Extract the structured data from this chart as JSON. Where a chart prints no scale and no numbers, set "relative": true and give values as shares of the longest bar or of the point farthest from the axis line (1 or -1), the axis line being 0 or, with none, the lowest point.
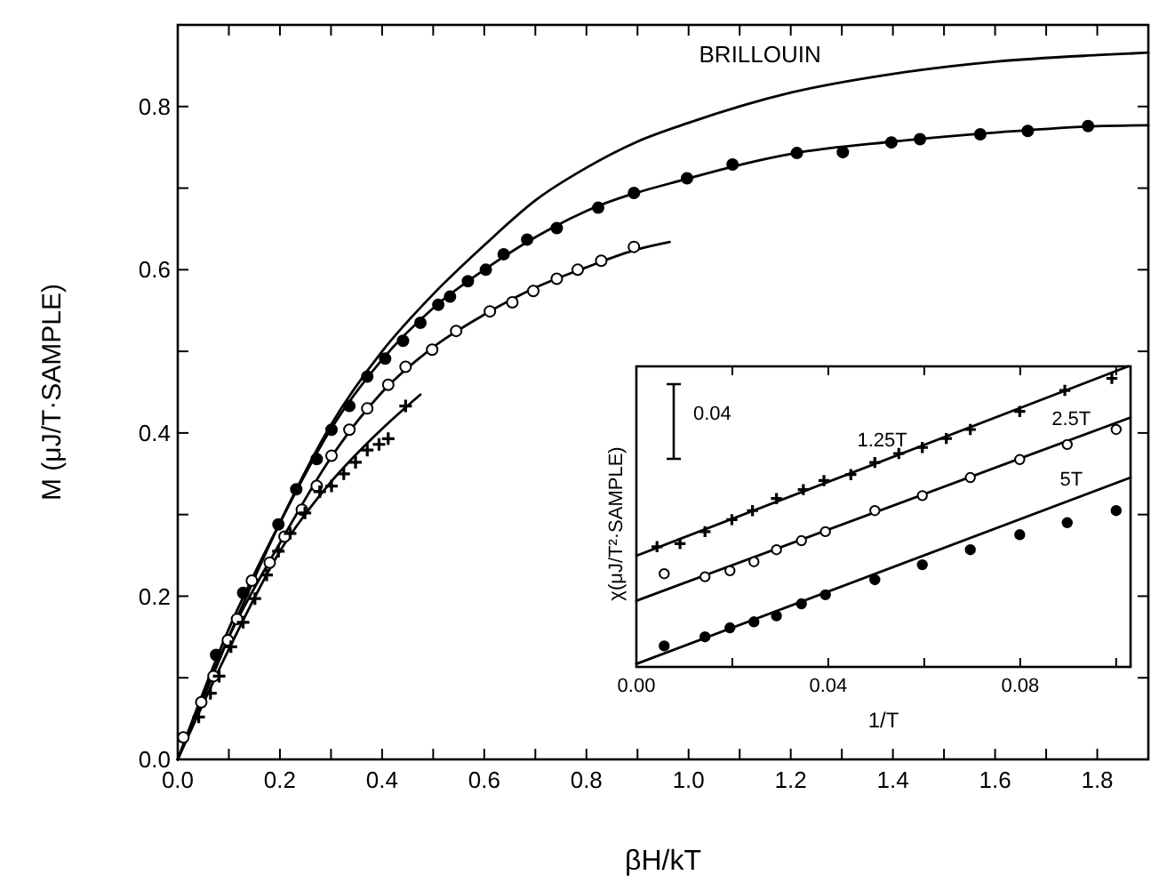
{
  "chart_data": [
    {
      "type": "line",
      "xlabel": "βH/kT",
      "ylabel": "M (μJ/T·SAMPLE)",
      "xlim": [
        0,
        1.9
      ],
      "ylim": [
        0,
        0.9
      ],
      "xticks": [
        {
          "value": 0,
          "label": "0.0"
        },
        {
          "value": 0.1,
          "label": null
        },
        {
          "value": 0.2,
          "label": "0.2"
        },
        {
          "value": 0.3,
          "label": null
        },
        {
          "value": 0.4,
          "label": "0.4"
        },
        {
          "value": 0.5,
          "label": null
        },
        {
          "value": 0.6,
          "label": "0.6"
        },
        {
          "value": 0.7,
          "label": null
        },
        {
          "value": 0.8,
          "label": "0.8"
        },
        {
          "value": 0.9,
          "label": null
        },
        {
          "value": 1.0,
          "label": "1.0"
        },
        {
          "value": 1.1,
          "label": null
        },
        {
          "value": 1.2,
          "label": "1.2"
        },
        {
          "value": 1.3,
          "label": null
        },
        {
          "value": 1.4,
          "label": "1.4"
        },
        {
          "value": 1.5,
          "label": null
        },
        {
          "value": 1.6,
          "label": "1.6"
        },
        {
          "value": 1.7,
          "label": null
        },
        {
          "value": 1.8,
          "label": "1.8"
        }
      ],
      "yticks": [
        {
          "value": 0,
          "label": "0.0"
        },
        {
          "value": 0.1,
          "label": null
        },
        {
          "value": 0.2,
          "label": "0.2"
        },
        {
          "value": 0.3,
          "label": null
        },
        {
          "value": 0.4,
          "label": "0.4"
        },
        {
          "value": 0.5,
          "label": null
        },
        {
          "value": 0.6,
          "label": "0.6"
        },
        {
          "value": 0.7,
          "label": null
        },
        {
          "value": 0.8,
          "label": "0.8"
        }
      ],
      "series": [
        {
          "name": "BRILLOUIN",
          "type": "line",
          "color": "#000000",
          "marker": "none",
          "x": [
            0,
            0.05,
            0.1,
            0.2,
            0.3,
            0.4,
            0.5,
            0.6,
            0.7,
            0.8,
            0.9,
            1.0,
            1.2,
            1.4,
            1.6,
            1.8,
            1.9
          ],
          "values": [
            0,
            0.075,
            0.15,
            0.29,
            0.41,
            0.5,
            0.57,
            0.63,
            0.685,
            0.725,
            0.757,
            0.78,
            0.817,
            0.84,
            0.855,
            0.863,
            0.866
          ]
        },
        {
          "type": "line",
          "color": "#000000",
          "marker": "none",
          "x": [
            0,
            0.1,
            0.2,
            0.3,
            0.4,
            0.5,
            0.6,
            0.8,
            1.0,
            1.2,
            1.4,
            1.6,
            1.8,
            1.9
          ],
          "values": [
            0,
            0.16,
            0.29,
            0.405,
            0.49,
            0.553,
            0.6,
            0.672,
            0.712,
            0.742,
            0.757,
            0.768,
            0.776,
            0.777
          ]
        },
        {
          "type": "line",
          "color": "#000000",
          "marker": "none",
          "x": [
            0,
            0.1,
            0.2,
            0.3,
            0.4,
            0.5,
            0.6,
            0.7,
            0.8,
            0.9,
            0.963
          ],
          "values": [
            0,
            0.15,
            0.265,
            0.37,
            0.45,
            0.505,
            0.545,
            0.578,
            0.603,
            0.625,
            0.634
          ]
        },
        {
          "type": "line",
          "color": "#000000",
          "marker": "none",
          "x": [
            0,
            0.1,
            0.2,
            0.3,
            0.4,
            0.475
          ],
          "values": [
            0,
            0.135,
            0.255,
            0.34,
            0.405,
            0.447
          ]
        },
        {
          "type": "scatter",
          "color": "#000000",
          "marker": "circle",
          "x": [
            0.075,
            0.128,
            0.197,
            0.232,
            0.272,
            0.301,
            0.336,
            0.371,
            0.406,
            0.441,
            0.475,
            0.51,
            0.533,
            0.568,
            0.603,
            0.638,
            0.684,
            0.742,
            0.823,
            0.893,
            0.997,
            1.086,
            1.212,
            1.302,
            1.397,
            1.453,
            1.571,
            1.664,
            1.782
          ],
          "values": [
            0.128,
            0.204,
            0.288,
            0.331,
            0.368,
            0.404,
            0.433,
            0.469,
            0.491,
            0.513,
            0.535,
            0.557,
            0.567,
            0.586,
            0.6,
            0.619,
            0.637,
            0.651,
            0.676,
            0.694,
            0.712,
            0.729,
            0.743,
            0.744,
            0.756,
            0.76,
            0.766,
            0.77,
            0.776
          ]
        },
        {
          "type": "scatter",
          "color": "#ffffff",
          "marker": "circle",
          "x": [
            0.011,
            0.046,
            0.07,
            0.098,
            0.116,
            0.145,
            0.18,
            0.209,
            0.243,
            0.272,
            0.301,
            0.336,
            0.371,
            0.412,
            0.446,
            0.498,
            0.545,
            0.611,
            0.655,
            0.696,
            0.742,
            0.783,
            0.829,
            0.893
          ],
          "values": [
            0.027,
            0.07,
            0.102,
            0.146,
            0.172,
            0.219,
            0.241,
            0.273,
            0.306,
            0.335,
            0.372,
            0.404,
            0.43,
            0.459,
            0.481,
            0.502,
            0.525,
            0.549,
            0.56,
            0.574,
            0.589,
            0.6,
            0.611,
            0.628
          ]
        },
        {
          "type": "scatter",
          "color": "#000000",
          "marker": "cross",
          "x": [
            0.041,
            0.064,
            0.081,
            0.104,
            0.128,
            0.151,
            0.174,
            0.197,
            0.22,
            0.249,
            0.278,
            0.301,
            0.325,
            0.348,
            0.371,
            0.394,
            0.412,
            0.446
          ],
          "values": [
            0.052,
            0.081,
            0.102,
            0.138,
            0.168,
            0.197,
            0.226,
            0.255,
            0.277,
            0.302,
            0.328,
            0.335,
            0.35,
            0.364,
            0.379,
            0.386,
            0.393,
            0.433
          ]
        }
      ]
    },
    {
      "type": "line",
      "relative": true,
      "xlabel": "1/T",
      "ylabel": "χ(μJ/T²·SAMPLE)",
      "annotations": [
        "0.04"
      ],
      "xlim": [
        0,
        0.103
      ],
      "xticks": [
        {
          "value": 0,
          "label": "0.00"
        },
        {
          "value": 0.02,
          "label": null
        },
        {
          "value": 0.04,
          "label": "0.04"
        },
        {
          "value": 0.06,
          "label": null
        },
        {
          "value": 0.08,
          "label": "0.08"
        },
        {
          "value": 0.1,
          "label": null
        }
      ],
      "series": [
        {
          "name": "1.25T",
          "type": "line",
          "color": "#000000",
          "marker": "none",
          "x": [
            0,
            0.1025
          ],
          "values": [
            0.37,
            1.0
          ]
        },
        {
          "name": "2.5T",
          "type": "line",
          "color": "#000000",
          "marker": "none",
          "x": [
            0,
            0.103
          ],
          "values": [
            0.22,
            0.83
          ]
        },
        {
          "name": "5T",
          "type": "line",
          "color": "#000000",
          "marker": "none",
          "x": [
            0,
            0.103
          ],
          "values": [
            0.01,
            0.63
          ]
        },
        {
          "type": "scatter",
          "color": "#000000",
          "marker": "cross",
          "x": [
            0.0043,
            0.0091,
            0.0143,
            0.0199,
            0.0242,
            0.0292,
            0.0348,
            0.0391,
            0.0447,
            0.0497,
            0.0547,
            0.0596,
            0.0646,
            0.0696,
            0.0799,
            0.0893,
            0.0991
          ],
          "values": [
            0.4,
            0.41,
            0.45,
            0.49,
            0.52,
            0.56,
            0.59,
            0.62,
            0.64,
            0.68,
            0.71,
            0.73,
            0.76,
            0.79,
            0.85,
            0.92,
            0.96
          ]
        },
        {
          "type": "scatter",
          "color": "#ffffff",
          "marker": "circle",
          "x": [
            0.0058,
            0.0143,
            0.0195,
            0.0245,
            0.0292,
            0.0344,
            0.0394,
            0.0497,
            0.0596,
            0.0696,
            0.0799,
            0.0898,
            0.1
          ],
          "values": [
            0.31,
            0.3,
            0.32,
            0.35,
            0.39,
            0.42,
            0.45,
            0.52,
            0.57,
            0.63,
            0.69,
            0.74,
            0.79
          ]
        },
        {
          "type": "scatter",
          "color": "#000000",
          "marker": "circle",
          "x": [
            0.0058,
            0.0143,
            0.0195,
            0.0245,
            0.0292,
            0.0344,
            0.0394,
            0.0497,
            0.0596,
            0.0696,
            0.0799,
            0.0898,
            0.1
          ],
          "values": [
            0.07,
            0.1,
            0.13,
            0.15,
            0.17,
            0.21,
            0.24,
            0.29,
            0.34,
            0.39,
            0.44,
            0.48,
            0.52
          ]
        }
      ]
    }
  ]
}
